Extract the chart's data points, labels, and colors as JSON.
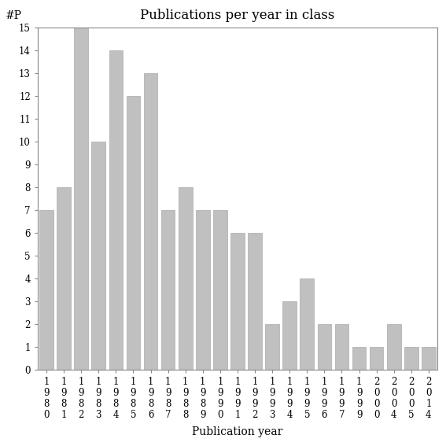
{
  "title": "Publications per year in class",
  "xlabel": "Publication year",
  "ylabel": "#P",
  "categories": [
    "1980",
    "1981",
    "1982",
    "1983",
    "1984",
    "1985",
    "1986",
    "1987",
    "1988",
    "1989",
    "1990",
    "1991",
    "1992",
    "1993",
    "1994",
    "1995",
    "1996",
    "1997",
    "1999",
    "2000",
    "2004",
    "2005",
    "2014"
  ],
  "values": [
    7,
    8,
    15,
    10,
    14,
    12,
    13,
    7,
    8,
    7,
    7,
    6,
    6,
    2,
    3,
    4,
    2,
    2,
    1,
    1,
    2,
    1,
    1
  ],
  "bar_color": "#c0c0c0",
  "bar_edge_color": "#aaaaaa",
  "ylim": [
    0,
    15
  ],
  "yticks": [
    0,
    1,
    2,
    3,
    4,
    5,
    6,
    7,
    8,
    9,
    10,
    11,
    12,
    13,
    14,
    15
  ],
  "background_color": "#ffffff",
  "title_fontsize": 12,
  "axis_label_fontsize": 10,
  "tick_fontsize": 8.5
}
